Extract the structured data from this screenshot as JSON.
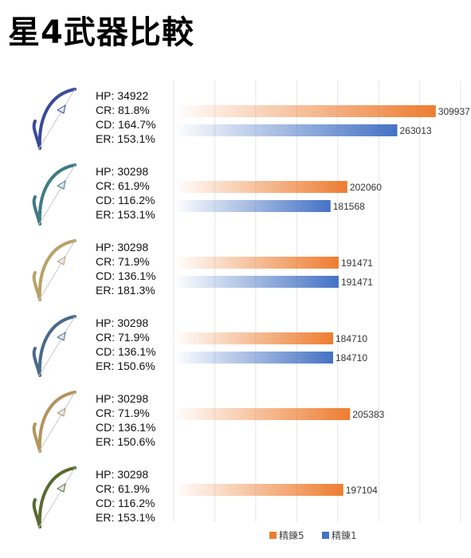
{
  "title": "星4武器比較",
  "chart_data": {
    "type": "bar",
    "orientation": "horizontal",
    "xlim": [
      0,
      350000
    ],
    "grid": true,
    "legend_position": "bottom-right",
    "colors": {
      "精錬5": "#ED7D31",
      "精錬1": "#4472C4"
    },
    "legend": [
      "精錬5",
      "精錬1"
    ],
    "weapons": [
      {
        "icon": "bow-weapon-icon",
        "stats": [
          "HP: 34922",
          "CR: 81.8%",
          "CD: 164.7%",
          "ER: 153.1%"
        ],
        "bars": [
          {
            "series": "精錬5",
            "value": 309937,
            "label": "309937"
          },
          {
            "series": "精錬1",
            "value": 263013,
            "label": "263013"
          }
        ]
      },
      {
        "icon": "bow-weapon-icon",
        "stats": [
          "HP: 30298",
          "CR: 61.9%",
          "CD: 116.2%",
          "ER: 153.1%"
        ],
        "bars": [
          {
            "series": "精錬5",
            "value": 202060,
            "label": "202060"
          },
          {
            "series": "精錬1",
            "value": 181568,
            "label": "181568"
          }
        ]
      },
      {
        "icon": "bow-weapon-icon",
        "stats": [
          "HP: 30298",
          "CR: 71.9%",
          "CD: 136.1%",
          "ER: 181.3%"
        ],
        "bars": [
          {
            "series": "精錬5",
            "value": 191471,
            "label": "191471"
          },
          {
            "series": "精錬1",
            "value": 191471,
            "label": "191471"
          }
        ]
      },
      {
        "icon": "bow-weapon-icon",
        "stats": [
          "HP: 30298",
          "CR: 71.9%",
          "CD: 136.1%",
          "ER: 150.6%"
        ],
        "bars": [
          {
            "series": "精錬5",
            "value": 184710,
            "label": "184710"
          },
          {
            "series": "精錬1",
            "value": 184710,
            "label": "184710"
          }
        ]
      },
      {
        "icon": "bow-weapon-icon",
        "stats": [
          "HP: 30298",
          "CR: 71.9%",
          "CD: 136.1%",
          "ER: 150.6%"
        ],
        "bars": [
          {
            "series": "精錬5",
            "value": 205383,
            "label": "205383"
          }
        ]
      },
      {
        "icon": "bow-weapon-icon",
        "stats": [
          "HP: 30298",
          "CR: 61.9%",
          "CD: 116.2%",
          "ER: 153.1%"
        ],
        "bars": [
          {
            "series": "精錬5",
            "value": 197104,
            "label": "197104"
          }
        ]
      }
    ]
  }
}
